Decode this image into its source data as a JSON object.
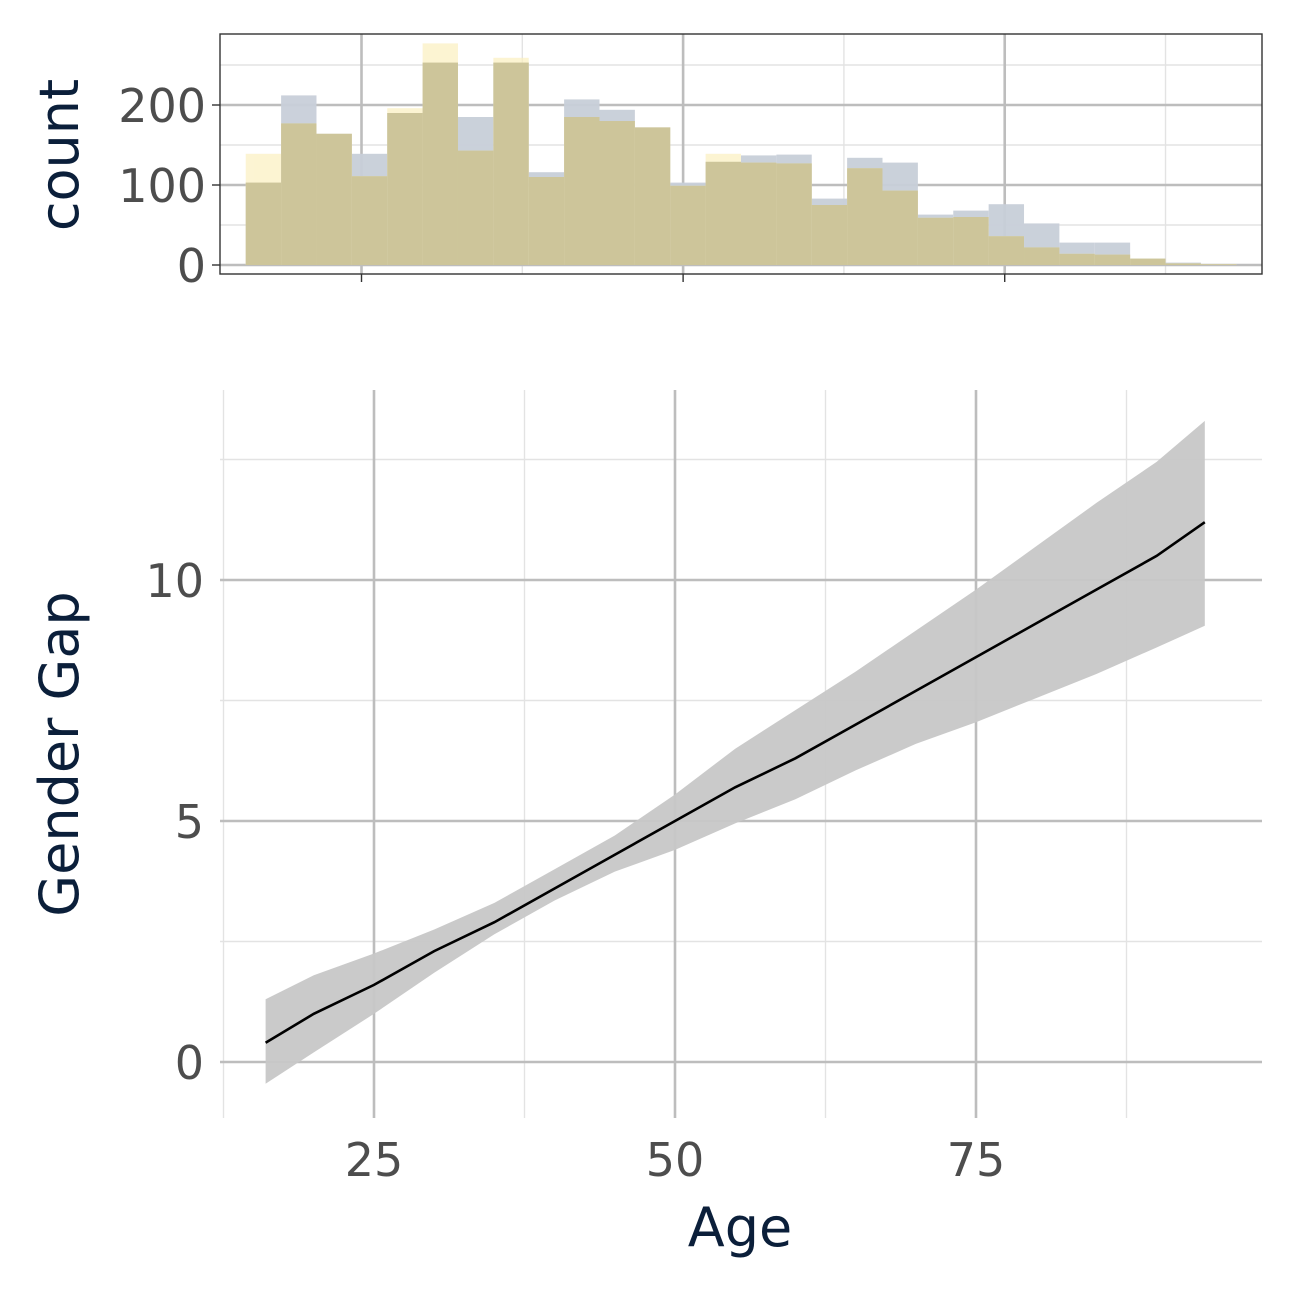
{
  "chart_data": [
    {
      "type": "bar",
      "role": "marginal-histogram",
      "ylabel": "count",
      "xlim": [
        14,
        95
      ],
      "ylim": [
        0,
        290
      ],
      "x_ticks": [
        25,
        50,
        75,
        100
      ],
      "y_ticks": [
        0,
        100,
        200
      ],
      "y_tick_labels": [
        "0",
        "100",
        "200"
      ],
      "bin_width": 2.75,
      "grid": true,
      "series": [
        {
          "color": "#c8cfd9",
          "values": [
            103,
            212,
            164,
            139,
            190,
            253,
            185,
            253,
            116,
            207,
            194,
            172,
            103,
            129,
            137,
            138,
            83,
            134,
            128,
            63,
            68,
            76,
            52,
            28,
            28,
            8,
            3,
            1
          ]
        },
        {
          "color": "#fbf0c2",
          "values": [
            139,
            177,
            164,
            111,
            196,
            277,
            143,
            259,
            110,
            185,
            180,
            172,
            99,
            139,
            128,
            127,
            75,
            121,
            93,
            59,
            60,
            36,
            22,
            14,
            13,
            8,
            2,
            1
          ]
        }
      ],
      "bin_starts": [
        16.0,
        18.75,
        21.5,
        24.25,
        27.0,
        29.75,
        32.5,
        35.25,
        38.0,
        40.75,
        43.5,
        46.25,
        49.0,
        51.75,
        54.5,
        57.25,
        60.0,
        62.75,
        65.5,
        68.25,
        71.0,
        73.75,
        76.5,
        79.25,
        82.0,
        84.75,
        87.5,
        90.25
      ]
    },
    {
      "type": "area",
      "role": "smooth-with-ribbon",
      "xlabel": "Age",
      "ylabel": "Gender Gap",
      "xlim": [
        12,
        95
      ],
      "ylim": [
        -1.2,
        14
      ],
      "x_ticks": [
        25,
        50,
        75
      ],
      "x_tick_labels": [
        "25",
        "50",
        "75"
      ],
      "y_ticks": [
        0,
        5,
        10
      ],
      "y_tick_labels": [
        "0",
        "5",
        "10"
      ],
      "grid": true,
      "line_color": "#000000",
      "ribbon_color": "#c7c7c7",
      "x": [
        16,
        20,
        25,
        30,
        35,
        40,
        45,
        50,
        55,
        60,
        65,
        70,
        75,
        80,
        85,
        90,
        94
      ],
      "y": [
        0.4,
        1.0,
        1.6,
        2.3,
        2.9,
        3.6,
        4.3,
        5.0,
        5.7,
        6.3,
        7.0,
        7.7,
        8.4,
        9.1,
        9.8,
        10.5,
        11.2
      ],
      "lower": [
        -0.45,
        0.2,
        1.0,
        1.85,
        2.65,
        3.35,
        3.95,
        4.4,
        4.95,
        5.45,
        6.05,
        6.6,
        7.05,
        7.55,
        8.05,
        8.6,
        9.05
      ],
      "upper": [
        1.3,
        1.8,
        2.25,
        2.75,
        3.3,
        4.0,
        4.7,
        5.55,
        6.5,
        7.3,
        8.1,
        8.95,
        9.8,
        10.7,
        11.6,
        12.45,
        13.3
      ]
    }
  ]
}
